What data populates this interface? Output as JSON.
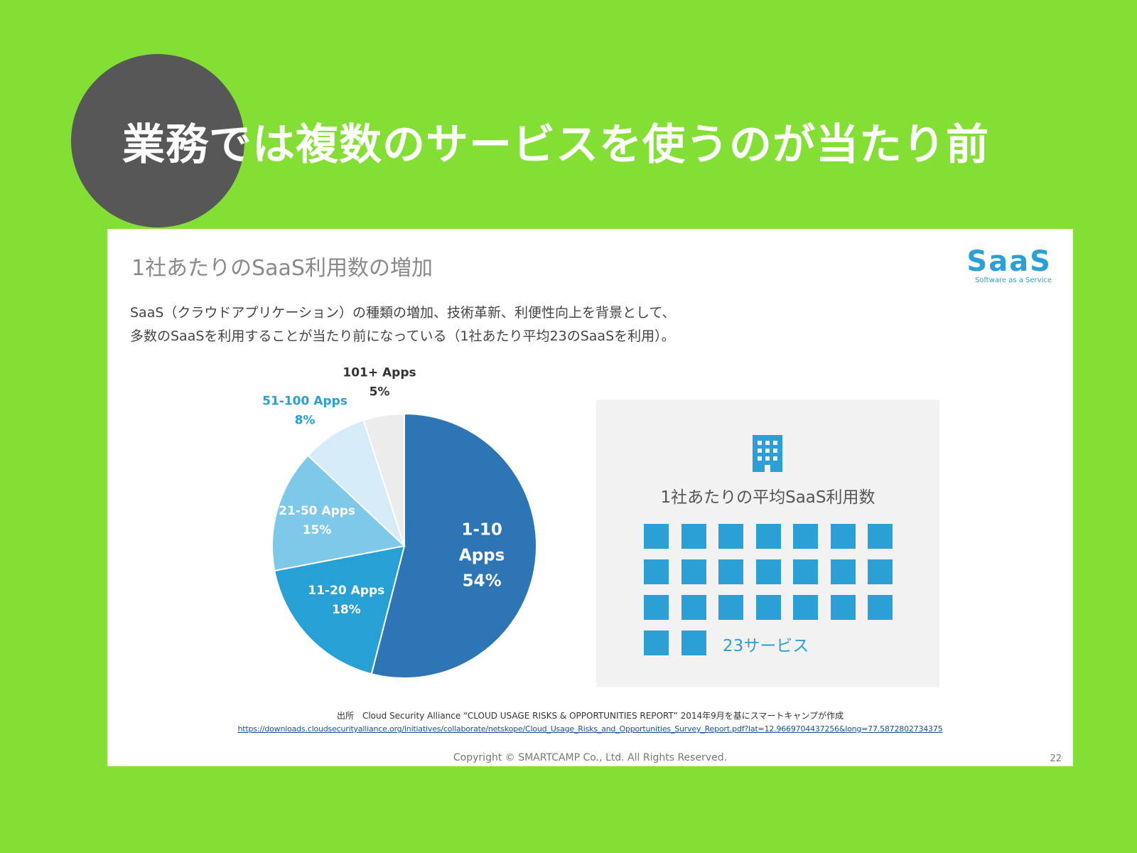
{
  "headline": "業務では複数のサービスを使うのが当たり前",
  "slide": {
    "title": "1社あたりのSaaS利用数の増加",
    "logo_main": "SaaS",
    "logo_sub": "Software as a Service",
    "desc_line1": "SaaS（クラウドアプリケーション）の種類の増加、技術革新、利便性向上を背景として、",
    "desc_line2": "多数のSaaSを利用することが当たり前になっている（1社あたり平均23のSaaSを利用）。",
    "panel_title": "1社あたりの平均SaaS利用数",
    "panel_count": "23サービス",
    "panel_icon_count": 23,
    "source": "出所　Cloud Security Alliance “CLOUD USAGE RISKS & OPPORTUNITIES REPORT” 2014年9月を基にスマートキャンプが作成",
    "url": "https://downloads.cloudsecurityalliance.org/initiatives/collaborate/netskope/Cloud_Usage_Risks_and_Opportunities_Survey_Report.pdf?lat=12.9669704437256&long=77.5872802734375",
    "copyright": "Copyright © SMARTCAMP Co., Ltd. All Rights Reserved.",
    "page_number": "22"
  },
  "colors": {
    "background": "#84df35",
    "accent": "#2aa0d6"
  },
  "chart_data": {
    "type": "pie",
    "slices": [
      {
        "label": "1-10 Apps",
        "label_lines": [
          "1-10",
          "Apps",
          "54%"
        ],
        "value": 54,
        "pct_text": "54%",
        "color": "#2e75b6"
      },
      {
        "label": "11-20 Apps",
        "label_lines": [
          "11-20 Apps",
          "18%"
        ],
        "value": 18,
        "pct_text": "18%",
        "color": "#27a1d5"
      },
      {
        "label": "21-50 Apps",
        "label_lines": [
          "21-50 Apps",
          "15%"
        ],
        "value": 15,
        "pct_text": "15%",
        "color": "#7ec8e9"
      },
      {
        "label": "51-100 Apps",
        "label_lines": [
          "51-100 Apps",
          "8%"
        ],
        "value": 8,
        "pct_text": "8%",
        "color": "#d5ecf8"
      },
      {
        "label": "101+ Apps",
        "label_lines": [
          "101+ Apps",
          "5%"
        ],
        "value": 5,
        "pct_text": "5%",
        "color": "#ececec"
      }
    ]
  }
}
